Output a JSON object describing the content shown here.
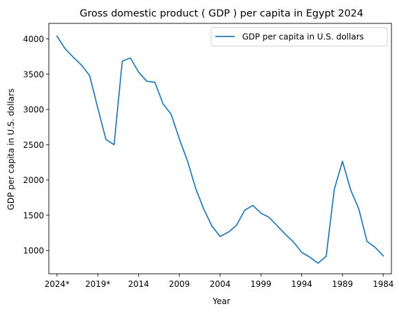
{
  "chart_data": {
    "type": "line",
    "title": "Gross domestic product ( GDP ) per capita in Egypt 2024",
    "xlabel": "Year",
    "ylabel": "GDP per capita in U.S. dollars",
    "x_order": "descending",
    "xlim": [
      1983,
      2025
    ],
    "ylim": [
      670,
      4220
    ],
    "x_ticks": [
      {
        "value": 2024,
        "label": "2024*"
      },
      {
        "value": 2019,
        "label": "2019*"
      },
      {
        "value": 2014,
        "label": "2014"
      },
      {
        "value": 2009,
        "label": "2009"
      },
      {
        "value": 2004,
        "label": "2004"
      },
      {
        "value": 1999,
        "label": "1999"
      },
      {
        "value": 1994,
        "label": "1994"
      },
      {
        "value": 1989,
        "label": "1989"
      },
      {
        "value": 1984,
        "label": "1984"
      }
    ],
    "y_ticks": [
      1000,
      1500,
      2000,
      2500,
      3000,
      3500,
      4000
    ],
    "grid": false,
    "legend_position": "top-right",
    "series": [
      {
        "name": "GDP per capita in U.S. dollars",
        "color": "#1f77b4",
        "x": [
          2024,
          2023,
          2022,
          2021,
          2020,
          2019,
          2018,
          2017,
          2016,
          2015,
          2014,
          2013,
          2012,
          2011,
          2010,
          2009,
          2008,
          2007,
          2006,
          2005,
          2004,
          2003,
          2002,
          2001,
          2000,
          1999,
          1998,
          1997,
          1996,
          1995,
          1994,
          1993,
          1992,
          1991,
          1990,
          1989,
          1988,
          1987,
          1986,
          1985,
          1984
        ],
        "y": [
          4040,
          3860,
          3740,
          3630,
          3480,
          3020,
          2575,
          2500,
          3685,
          3730,
          3530,
          3400,
          3385,
          3080,
          2930,
          2580,
          2270,
          1880,
          1585,
          1345,
          1200,
          1260,
          1355,
          1570,
          1640,
          1530,
          1470,
          1350,
          1230,
          1120,
          975,
          905,
          820,
          920,
          1870,
          2265,
          1860,
          1590,
          1130,
          1045,
          925
        ]
      }
    ]
  }
}
